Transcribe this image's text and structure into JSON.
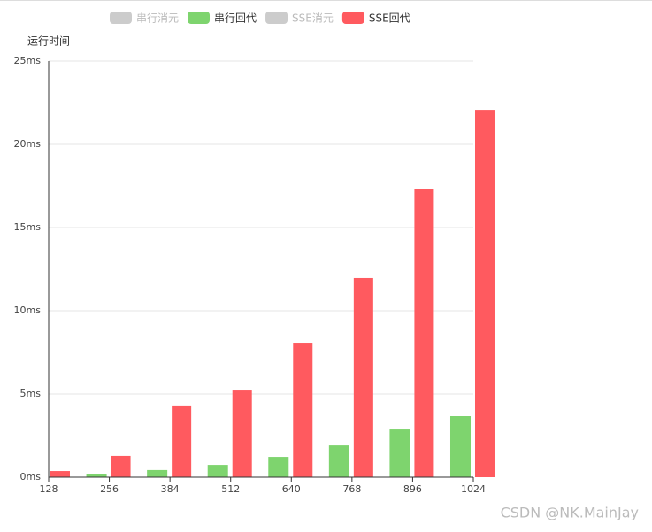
{
  "chart_data": {
    "type": "bar",
    "legend": [
      {
        "name": "串行消元",
        "color": "#cccccc",
        "active": false
      },
      {
        "name": "串行回代",
        "color": "#7ed46e",
        "active": true
      },
      {
        "name": "SSE消元",
        "color": "#cccccc",
        "active": false
      },
      {
        "name": "SSE回代",
        "color": "#ff5a5f",
        "active": true
      }
    ],
    "y_label": "运行时间",
    "categories": [
      "128",
      "256",
      "384",
      "512",
      "640",
      "768",
      "896",
      "1024"
    ],
    "series": [
      {
        "name": "串行回代",
        "color": "#7ed46e",
        "values": [
          0.05,
          0.16,
          0.43,
          0.74,
          1.22,
          1.91,
          2.87,
          3.67
        ]
      },
      {
        "name": "SSE回代",
        "color": "#ff5a5f",
        "values": [
          0.37,
          1.28,
          4.26,
          5.21,
          8.03,
          11.97,
          17.34,
          22.07
        ]
      }
    ],
    "ylim": [
      0,
      25
    ],
    "yticks": [
      {
        "value": 0,
        "label": "0ms"
      },
      {
        "value": 5,
        "label": "5ms"
      },
      {
        "value": 10,
        "label": "10ms"
      },
      {
        "value": 15,
        "label": "15ms"
      },
      {
        "value": 20,
        "label": "20ms"
      },
      {
        "value": 25,
        "label": "25ms"
      }
    ],
    "grid": true,
    "watermark": "CSDN @NK.MainJay"
  }
}
